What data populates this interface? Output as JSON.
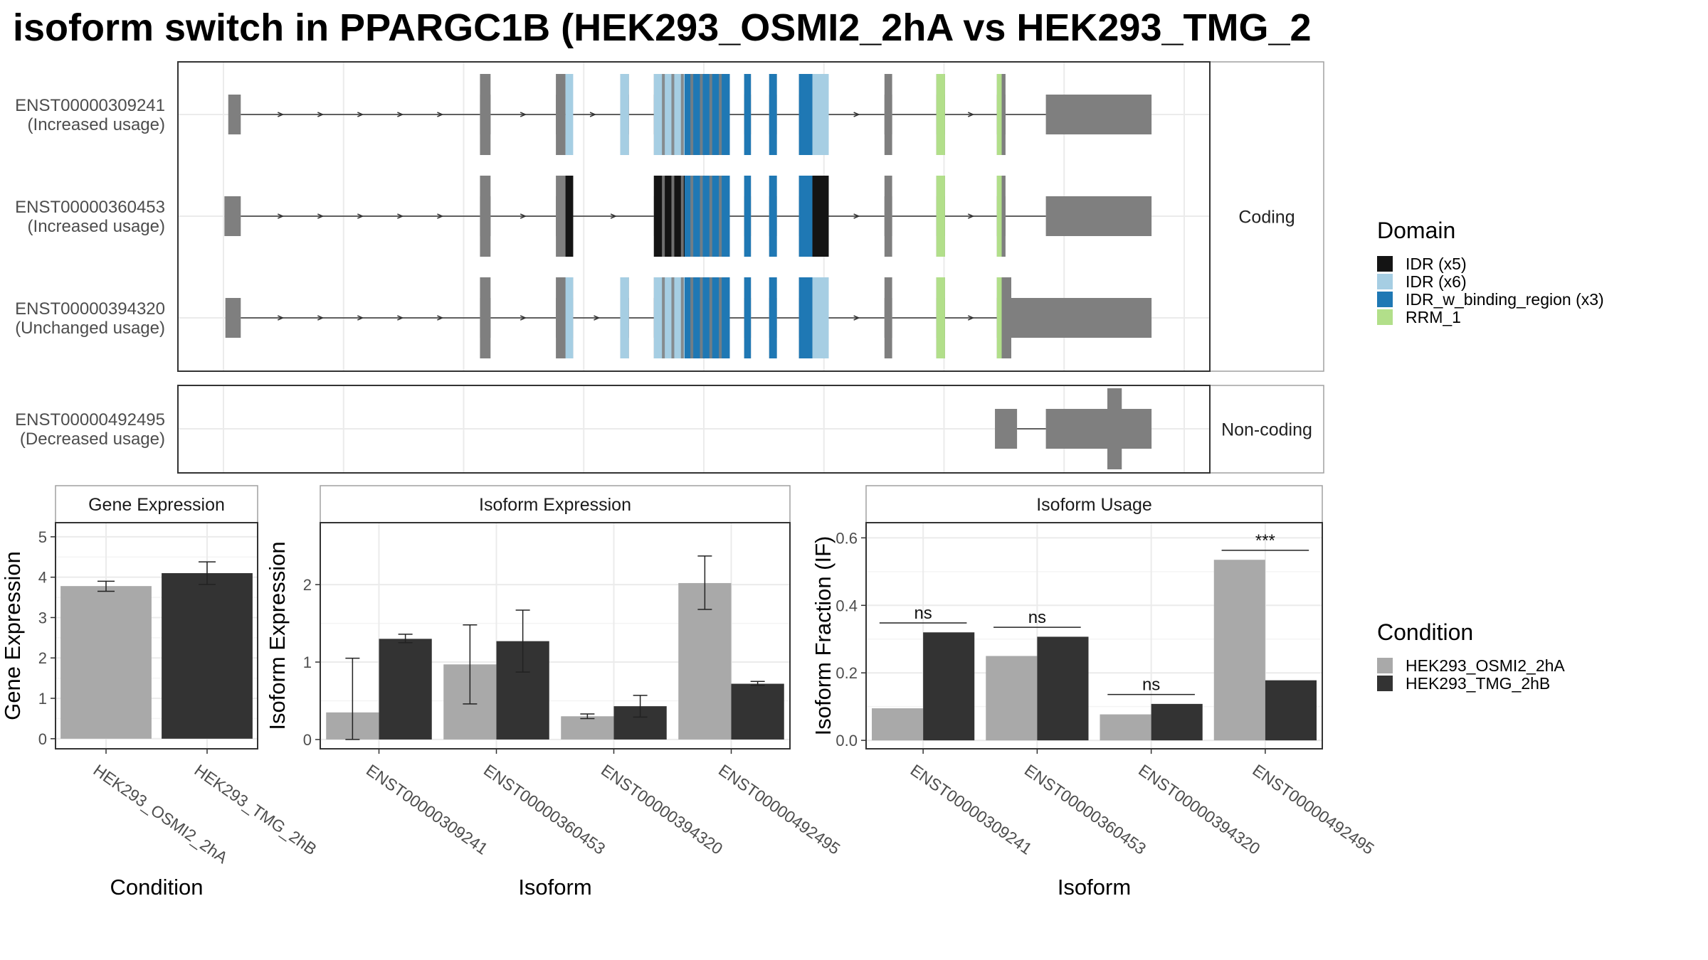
{
  "title": "isoform switch in PPARGC1B (HEK293_OSMI2_2hA vs HEK293_TMG_2",
  "colors": {
    "exon": "#7f7f7f",
    "cond_a": "#a9a9a9",
    "cond_b": "#333333",
    "panel_border": "#333333",
    "strip_border": "#a0a0a0",
    "grid": "#ebebeb"
  },
  "domain_legend": {
    "title": "Domain",
    "items": [
      {
        "label": "IDR (x5)",
        "color": "#141414"
      },
      {
        "label": "IDR (x6)",
        "color": "#a6cee3"
      },
      {
        "label": "IDR_w_binding_region (x3)",
        "color": "#1f78b4"
      },
      {
        "label": "RRM_1",
        "color": "#b2df8a"
      }
    ]
  },
  "condition_legend": {
    "title": "Condition",
    "items": [
      {
        "label": "HEK293_OSMI2_2hA",
        "color": "#a9a9a9"
      },
      {
        "label": "HEK293_TMG_2hB",
        "color": "#333333"
      }
    ]
  },
  "chart_data": [
    {
      "type": "gene-structure",
      "name": "isoform structures",
      "coordinate_range": [
        0,
        1000
      ],
      "facets": [
        {
          "label": "Coding",
          "transcripts": [
            {
              "id": "ENST00000309241",
              "usage": "(Increased usage)",
              "exons": [
                [
                  5,
                  18
                ],
                [
                  267,
                  278
                ],
                [
                  346,
                  356
                ],
                [
                  413,
                  422
                ],
                [
                  448,
                  527
                ],
                [
                  542,
                  549
                ],
                [
                  568,
                  576
                ],
                [
                  599,
                  630
                ],
                [
                  688,
                  696
                ],
                [
                  742,
                  751
                ],
                [
                  805,
                  814
                ],
                [
                  856,
                  966
                ]
              ],
              "domains": [
                {
                  "domain": "IDR (x6)",
                  "start": 356,
                  "end": 364
                },
                {
                  "domain": "IDR (x6)",
                  "start": 413,
                  "end": 422
                },
                {
                  "domain": "IDR (x6)",
                  "start": 448,
                  "end": 480
                },
                {
                  "domain": "IDR_w_binding_region (x3)",
                  "start": 480,
                  "end": 527
                },
                {
                  "domain": "IDR_w_binding_region (x3)",
                  "start": 542,
                  "end": 549
                },
                {
                  "domain": "IDR_w_binding_region (x3)",
                  "start": 568,
                  "end": 576
                },
                {
                  "domain": "IDR_w_binding_region (x3)",
                  "start": 599,
                  "end": 613
                },
                {
                  "domain": "IDR (x6)",
                  "start": 613,
                  "end": 630
                },
                {
                  "domain": "RRM_1",
                  "start": 742,
                  "end": 751
                },
                {
                  "domain": "RRM_1",
                  "start": 805,
                  "end": 810
                }
              ],
              "cds": [
                18,
                856
              ]
            },
            {
              "id": "ENST00000360453",
              "usage": "(Increased usage)",
              "exons": [
                [
                  1,
                  18
                ],
                [
                  267,
                  278
                ],
                [
                  346,
                  364
                ],
                [
                  448,
                  527
                ],
                [
                  542,
                  549
                ],
                [
                  568,
                  576
                ],
                [
                  599,
                  630
                ],
                [
                  688,
                  696
                ],
                [
                  742,
                  751
                ],
                [
                  805,
                  814
                ],
                [
                  856,
                  966
                ]
              ],
              "domains": [
                {
                  "domain": "IDR (x5)",
                  "start": 356,
                  "end": 364
                },
                {
                  "domain": "IDR (x5)",
                  "start": 448,
                  "end": 497
                },
                {
                  "domain": "IDR_w_binding_region (x3)",
                  "start": 480,
                  "end": 527
                },
                {
                  "domain": "IDR_w_binding_region (x3)",
                  "start": 542,
                  "end": 549
                },
                {
                  "domain": "IDR_w_binding_region (x3)",
                  "start": 568,
                  "end": 576
                },
                {
                  "domain": "IDR_w_binding_region (x3)",
                  "start": 599,
                  "end": 613
                },
                {
                  "domain": "IDR (x5)",
                  "start": 613,
                  "end": 630
                },
                {
                  "domain": "RRM_1",
                  "start": 742,
                  "end": 751
                },
                {
                  "domain": "RRM_1",
                  "start": 805,
                  "end": 810
                }
              ],
              "cds": [
                18,
                856
              ]
            },
            {
              "id": "ENST00000394320",
              "usage": "(Unchanged usage)",
              "exons": [
                [
                  2,
                  18
                ],
                [
                  267,
                  278
                ],
                [
                  346,
                  364
                ],
                [
                  413,
                  422
                ],
                [
                  448,
                  527
                ],
                [
                  542,
                  549
                ],
                [
                  568,
                  576
                ],
                [
                  599,
                  630
                ],
                [
                  688,
                  696
                ],
                [
                  742,
                  751
                ],
                [
                  805,
                  966
                ]
              ],
              "domains": [
                {
                  "domain": "IDR (x6)",
                  "start": 356,
                  "end": 364
                },
                {
                  "domain": "IDR (x6)",
                  "start": 413,
                  "end": 422
                },
                {
                  "domain": "IDR (x6)",
                  "start": 448,
                  "end": 480
                },
                {
                  "domain": "IDR_w_binding_region (x3)",
                  "start": 480,
                  "end": 527
                },
                {
                  "domain": "IDR_w_binding_region (x3)",
                  "start": 542,
                  "end": 549
                },
                {
                  "domain": "IDR_w_binding_region (x3)",
                  "start": 568,
                  "end": 576
                },
                {
                  "domain": "IDR_w_binding_region (x3)",
                  "start": 599,
                  "end": 613
                },
                {
                  "domain": "IDR (x6)",
                  "start": 613,
                  "end": 630
                },
                {
                  "domain": "RRM_1",
                  "start": 742,
                  "end": 751
                },
                {
                  "domain": "RRM_1",
                  "start": 805,
                  "end": 810
                }
              ],
              "cds": [
                18,
                820
              ]
            }
          ]
        },
        {
          "label": "Non-coding",
          "transcripts": [
            {
              "id": "ENST00000492495",
              "usage": "(Decreased usage)",
              "exons": [
                [
                  803,
                  826
                ],
                [
                  856,
                  966
                ]
              ],
              "domains": [],
              "cds": [
                920,
                935
              ]
            }
          ]
        }
      ]
    },
    {
      "type": "bar",
      "name": "gene-expression",
      "panel_title": "Gene Expression",
      "xlabel": "Condition",
      "ylabel": "Gene Expression",
      "categories": [
        "HEK293_OSMI2_2hA",
        "HEK293_TMG_2hB"
      ],
      "values": [
        3.78,
        4.1
      ],
      "errors": [
        [
          3.65,
          3.9
        ],
        [
          3.82,
          4.38
        ]
      ],
      "ylim": [
        -0.25,
        5.35
      ],
      "yticks": [
        0,
        1,
        2,
        3,
        4,
        5
      ],
      "grid": true
    },
    {
      "type": "bar",
      "name": "isoform-expression",
      "panel_title": "Isoform Expression",
      "xlabel": "Isoform",
      "ylabel": "Isoform Expression",
      "categories": [
        "ENST00000309241",
        "ENST00000360453",
        "ENST00000394320",
        "ENST00000492495"
      ],
      "series": [
        {
          "name": "HEK293_OSMI2_2hA",
          "values": [
            0.35,
            0.97,
            0.3,
            2.02
          ],
          "errors": [
            [
              0.0,
              1.05
            ],
            [
              0.46,
              1.48
            ],
            [
              0.27,
              0.33
            ],
            [
              1.68,
              2.37
            ]
          ]
        },
        {
          "name": "HEK293_TMG_2hB",
          "values": [
            1.3,
            1.27,
            0.43,
            0.72
          ],
          "errors": [
            [
              1.25,
              1.36
            ],
            [
              0.87,
              1.67
            ],
            [
              0.29,
              0.57
            ],
            [
              0.7,
              0.75
            ]
          ]
        }
      ],
      "ylim": [
        -0.12,
        2.8
      ],
      "yticks": [
        0,
        1,
        2
      ],
      "grid": true
    },
    {
      "type": "bar",
      "name": "isoform-usage",
      "panel_title": "Isoform Usage",
      "xlabel": "Isoform",
      "ylabel": "Isoform Fraction (IF)",
      "categories": [
        "ENST00000309241",
        "ENST00000360453",
        "ENST00000394320",
        "ENST00000492495"
      ],
      "series": [
        {
          "name": "HEK293_OSMI2_2hA",
          "values": [
            0.095,
            0.25,
            0.077,
            0.535
          ]
        },
        {
          "name": "HEK293_TMG_2hB",
          "values": [
            0.32,
            0.307,
            0.108,
            0.178
          ]
        }
      ],
      "significance": [
        "ns",
        "ns",
        "ns",
        "***"
      ],
      "ylim": [
        -0.025,
        0.645
      ],
      "yticks": [
        0.0,
        0.2,
        0.4,
        0.6
      ],
      "grid": true
    }
  ]
}
